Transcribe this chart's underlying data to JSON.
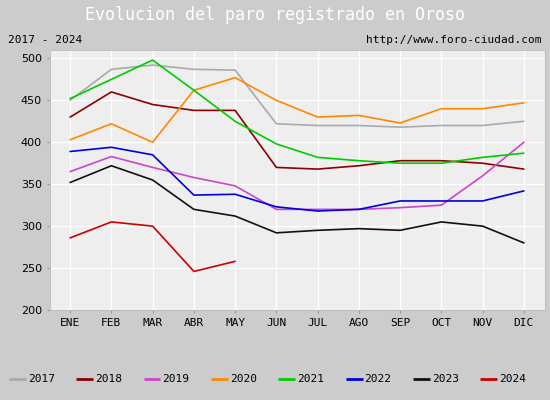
{
  "title": "Evolucion del paro registrado en Oroso",
  "subtitle_left": "2017 - 2024",
  "subtitle_right": "http://www.foro-ciudad.com",
  "months": [
    "ENE",
    "FEB",
    "MAR",
    "ABR",
    "MAY",
    "JUN",
    "JUL",
    "AGO",
    "SEP",
    "OCT",
    "NOV",
    "DIC"
  ],
  "ylim": [
    200,
    510
  ],
  "yticks": [
    200,
    250,
    300,
    350,
    400,
    450,
    500
  ],
  "series": {
    "2017": {
      "color": "#aaaaaa",
      "data": [
        450,
        487,
        492,
        487,
        486,
        422,
        420,
        420,
        418,
        420,
        420,
        425
      ]
    },
    "2018": {
      "color": "#8b0000",
      "data": [
        430,
        460,
        445,
        438,
        438,
        370,
        368,
        372,
        378,
        378,
        375,
        368
      ]
    },
    "2019": {
      "color": "#cc44cc",
      "data": [
        365,
        383,
        370,
        358,
        348,
        320,
        320,
        320,
        322,
        325,
        360,
        400
      ]
    },
    "2020": {
      "color": "#ff8800",
      "data": [
        403,
        422,
        400,
        462,
        477,
        450,
        430,
        432,
        423,
        440,
        440,
        447
      ]
    },
    "2021": {
      "color": "#00cc00",
      "data": [
        452,
        475,
        498,
        462,
        425,
        398,
        382,
        378,
        375,
        375,
        382,
        387
      ]
    },
    "2022": {
      "color": "#0000dd",
      "data": [
        389,
        394,
        385,
        337,
        338,
        323,
        318,
        320,
        330,
        330,
        330,
        342
      ]
    },
    "2023": {
      "color": "#111111",
      "data": [
        352,
        372,
        355,
        320,
        312,
        292,
        295,
        297,
        295,
        305,
        300,
        280
      ]
    },
    "2024": {
      "color": "#cc0000",
      "data": [
        286,
        305,
        300,
        246,
        258,
        null,
        null,
        null,
        null,
        null,
        null,
        null
      ]
    }
  },
  "bg_title": "#4472c4",
  "bg_subtitle": "#e0e0e0",
  "bg_plot": "#eeeeee",
  "grid_color": "#ffffff",
  "legend_bg": "#eeeeee",
  "legend_border": "#4472c4",
  "title_fontsize": 12,
  "subtitle_fontsize": 8,
  "tick_fontsize": 8,
  "legend_fontsize": 8
}
